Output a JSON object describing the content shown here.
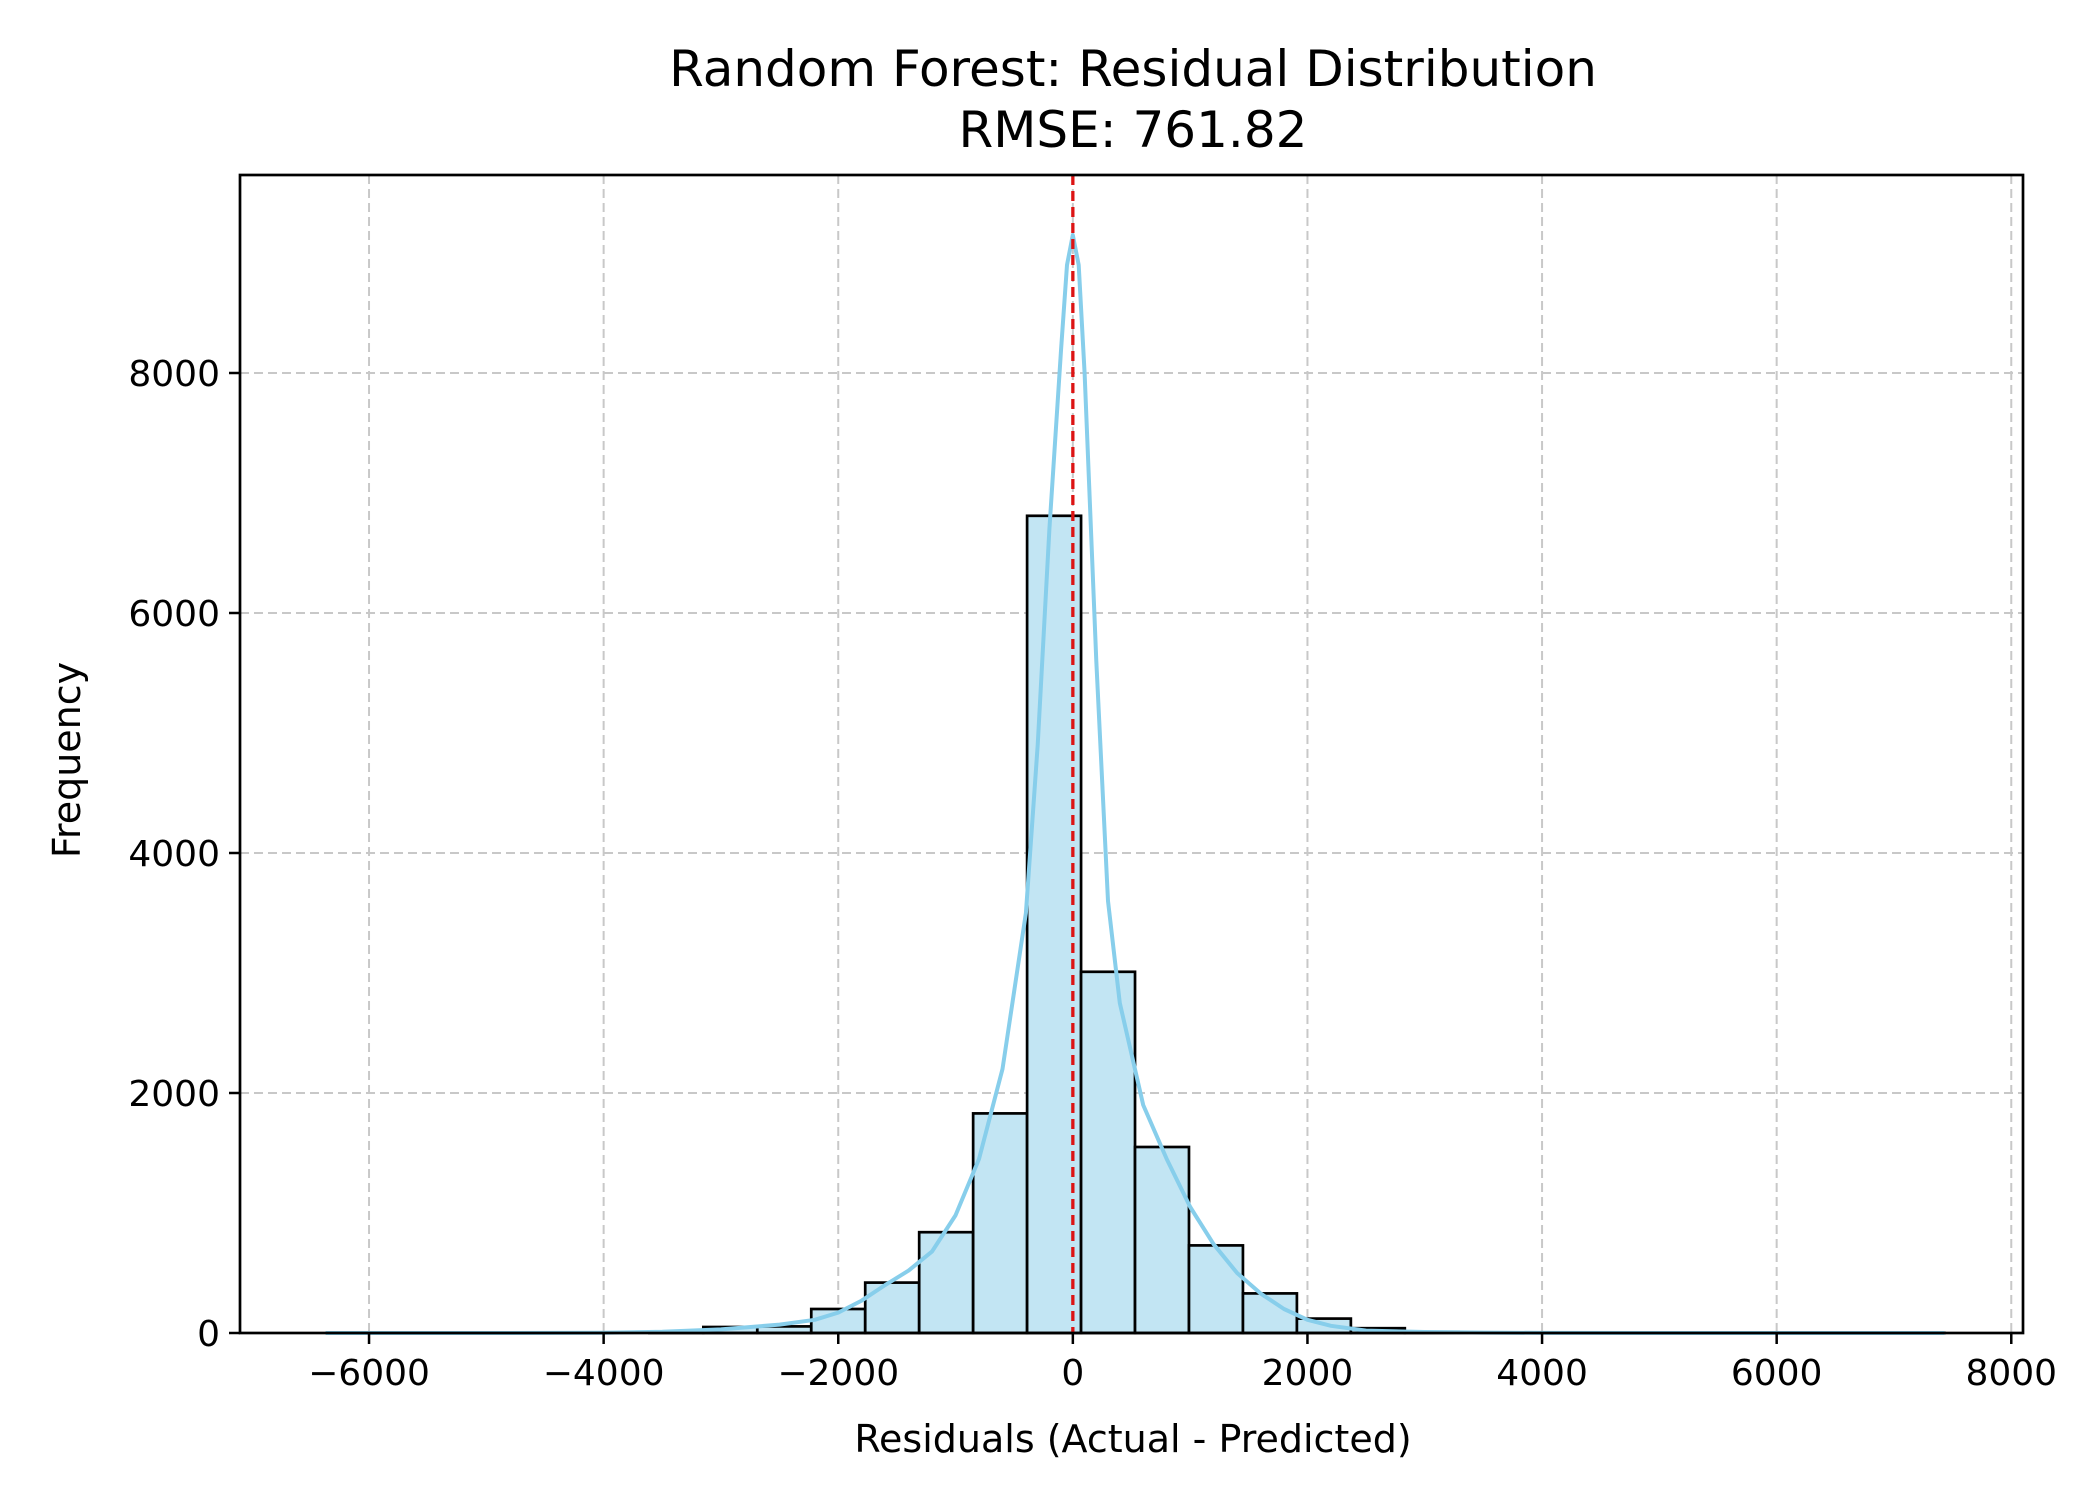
{
  "chart_data": {
    "type": "histogram",
    "title": "Random Forest: Residual Distribution",
    "subtitle": "RMSE: 761.82",
    "xlabel": "Residuals (Actual - Predicted)",
    "ylabel": "Frequency",
    "xlim": [
      -7100,
      8100
    ],
    "ylim": [
      0,
      9650
    ],
    "xticks": [
      -6000,
      -4000,
      -2000,
      0,
      2000,
      4000,
      6000,
      8000
    ],
    "xtick_labels": [
      "−6000",
      "−4000",
      "−2000",
      "0",
      "2000",
      "4000",
      "6000",
      "8000"
    ],
    "yticks": [
      0,
      2000,
      4000,
      6000,
      8000
    ],
    "ytick_labels": [
      "0",
      "2000",
      "4000",
      "6000",
      "8000"
    ],
    "grid": true,
    "bin_width": 460,
    "bins": [
      {
        "start": -6370,
        "end": -5910,
        "count": 0
      },
      {
        "start": -5910,
        "end": -5450,
        "count": 0
      },
      {
        "start": -5450,
        "end": -4990,
        "count": 0
      },
      {
        "start": -4990,
        "end": -4530,
        "count": 0
      },
      {
        "start": -4530,
        "end": -4070,
        "count": 0
      },
      {
        "start": -4070,
        "end": -3610,
        "count": 0
      },
      {
        "start": -3610,
        "end": -3150,
        "count": 5
      },
      {
        "start": -3150,
        "end": -2690,
        "count": 50
      },
      {
        "start": -2690,
        "end": -2230,
        "count": 55
      },
      {
        "start": -2230,
        "end": -1770,
        "count": 200
      },
      {
        "start": -1770,
        "end": -1310,
        "count": 420
      },
      {
        "start": -1310,
        "end": -850,
        "count": 840
      },
      {
        "start": -850,
        "end": -390,
        "count": 1830
      },
      {
        "start": -390,
        "end": 70,
        "count": 6810
      },
      {
        "start": 70,
        "end": 530,
        "count": 3010
      },
      {
        "start": 530,
        "end": 990,
        "count": 1550
      },
      {
        "start": 990,
        "end": 1450,
        "count": 730
      },
      {
        "start": 1450,
        "end": 1910,
        "count": 330
      },
      {
        "start": 1910,
        "end": 2370,
        "count": 120
      },
      {
        "start": 2370,
        "end": 2830,
        "count": 40
      },
      {
        "start": 2830,
        "end": 3290,
        "count": 10
      },
      {
        "start": 3290,
        "end": 3750,
        "count": 3
      },
      {
        "start": 3750,
        "end": 4210,
        "count": 2
      },
      {
        "start": 4210,
        "end": 4670,
        "count": 1
      },
      {
        "start": 4670,
        "end": 5130,
        "count": 0
      },
      {
        "start": 5130,
        "end": 5590,
        "count": 0
      },
      {
        "start": 5590,
        "end": 6050,
        "count": 0
      },
      {
        "start": 6050,
        "end": 6510,
        "count": 0
      },
      {
        "start": 6510,
        "end": 6970,
        "count": 0
      },
      {
        "start": 6970,
        "end": 7430,
        "count": 1
      }
    ],
    "kde": {
      "x": [
        -6370,
        -5000,
        -4000,
        -3500,
        -3000,
        -2500,
        -2200,
        -2000,
        -1800,
        -1600,
        -1400,
        -1200,
        -1000,
        -800,
        -600,
        -400,
        -300,
        -200,
        -100,
        -50,
        0,
        50,
        100,
        200,
        300,
        400,
        600,
        800,
        1000,
        1200,
        1400,
        1600,
        1800,
        2000,
        2200,
        2500,
        3000,
        3500,
        4000,
        5000,
        6000,
        7430
      ],
      "y": [
        0,
        0,
        2,
        10,
        30,
        70,
        110,
        170,
        270,
        400,
        520,
        680,
        980,
        1450,
        2200,
        3500,
        4900,
        6700,
        8200,
        8900,
        9150,
        8900,
        8000,
        5600,
        3600,
        2750,
        1900,
        1450,
        1050,
        740,
        500,
        330,
        200,
        110,
        60,
        20,
        8,
        3,
        1,
        0,
        0,
        0
      ]
    },
    "reference_line": {
      "x": 0,
      "style": "dashed",
      "color": "#dc1414"
    },
    "colors": {
      "bar_fill": "#c2e5f3",
      "bar_edge": "#000000",
      "kde_line": "#87ceeb",
      "grid": "#c8c8c8"
    }
  }
}
